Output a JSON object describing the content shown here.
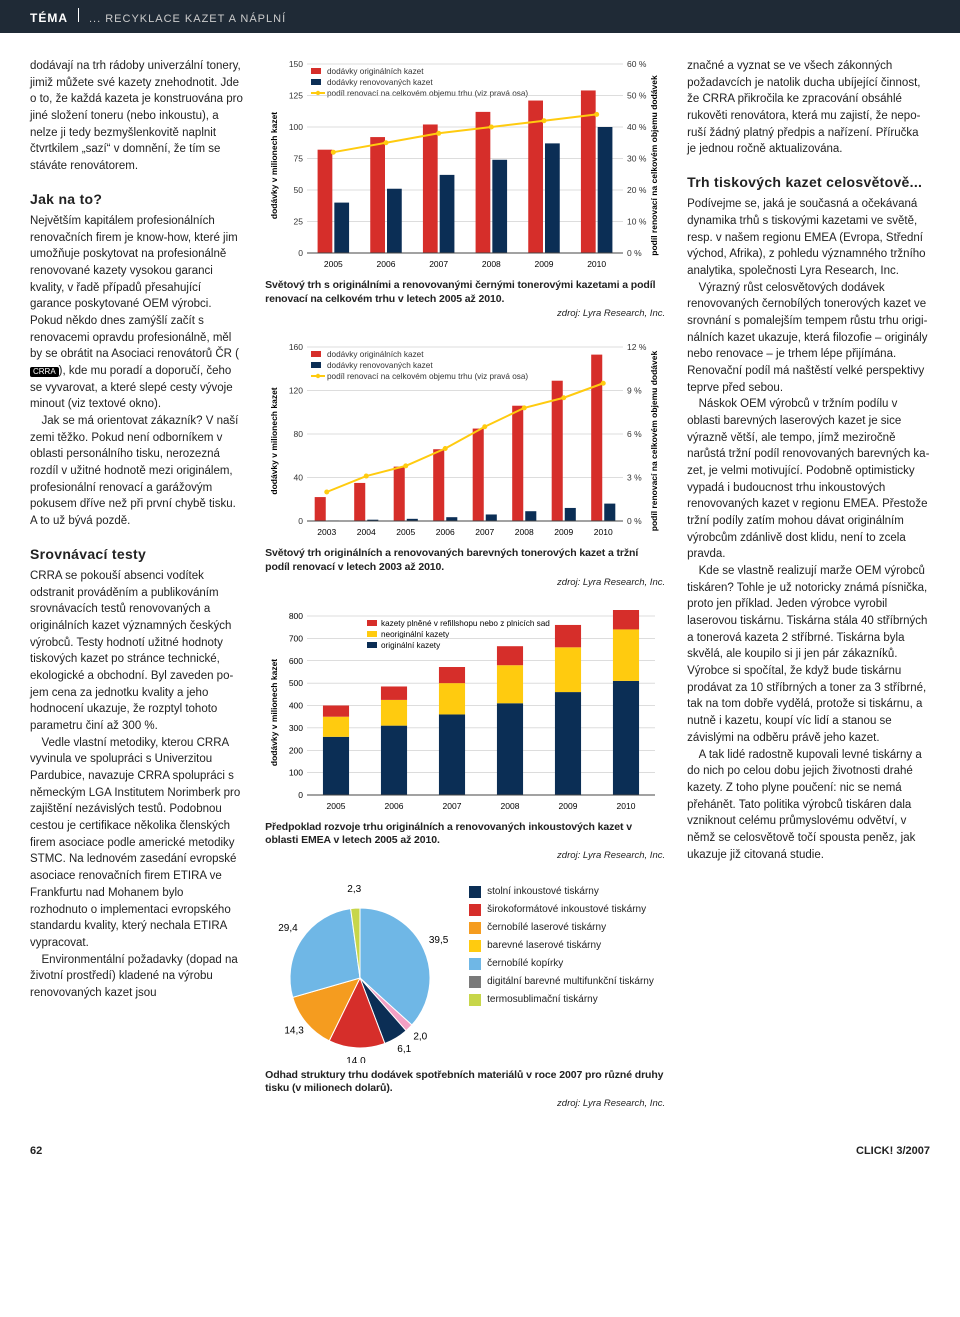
{
  "header": {
    "tema": "TÉMA",
    "subtitle": "... RECYKLACE KAZET A NÁPLNÍ"
  },
  "left": {
    "p1": "dodávají na trh rádoby univerzální tonery, jimiž můžete své kazety zne­hodnotit. Jde o to, že každá kazeta je konstruována pro jiné složení to­neru (nebo inkoustu), a nelze ji tedy bezmyšlenkovitě naplnit čtvrtkilem „sazí“ v domnění, že tím se stáváte renovátorem.",
    "h1": "Jak na to?",
    "p2": "Největším kapitálem profesionálních renovačních firem je know-how, které jim umožňuje poskytovat na profesionálně renovované kazety vysokou garanci kvality, v řadě pří­padů přesahující garance poskyto­vané OEM výrobci. Pokud někdo dnes zamýšlí začít s renovacemi opravdu profesionálně, měl by se obrátit na Asociaci renovátorů ČR (",
    "badge": "CRRA",
    "p2b": "), kde mu poradí a doporučí, čeho se vyvarovat, a které slepé cesty vývoje minout (viz textové okno).",
    "p3": "Jak se má orientovat zákazník? V naší zemi těžko. Pokud není od­borníkem v oblasti personálního tisku, nerozezná rozdíl v užitné hod­notě mezi originálem, profesionální renovací a garážovým pokusem dříve než při první chybě tisku. A to už bývá pozdě.",
    "h2": "Srovnávací testy",
    "p4": "CRRA se pokouší absenci vodítek odstranit prováděním a publiková­ním srovnávacích testů renovova­ných a originálních kazet význam­ných českých výrobců. Testy hodnotí užitné hodnoty tiskových kazet po stránce technické, ekolo­gické a obchodní. Byl zaveden po­jem cena za jednotku kvality a jeho hodnocení ukazuje, že rozptyl to­hoto parametru činí až 300 %.",
    "p5": "Vedle vlastní metodiky, kterou CRRA vyvinula ve spolupráci s Uni­verzitou Pardubice, navazuje CRRA spolupráci s německým LGA Insti­tutem Norimberk pro zajištění nezá­vislých testů. Podobnou cestou je certifikace několika členských firem asociace podle americké metodiky STMC. Na lednovém za­sedání evropské asociace renovač­ních firem ETIRA ve Frankfurtu nad Mohanem bylo rozhodnuto o imple­mentaci evropského standardu kvality, který nechala ETIRA vypra­covat.",
    "p6": "Environmentální požadavky (do­pad na životní prostředí) kladené na výrobu renovovaných kazet jsou"
  },
  "right": {
    "p1": "značné a vyznat se ve všech zákon­ných požadavcích je natolik ducha ubíjející činnost, že CRRA přikročila ke zpracování obsáhlé rukověti re­novátora, která mu zajistí, že nepo­ruší žádný platný předpis a nařízení. Příručka je jednou ročně aktualizo­vána.",
    "h1": "Trh tiskových kazet celosvětově...",
    "p2": "Podívejme se, jaká je současná a očekávaná dynamika trhů s tis­kovými kazetami ve světě, resp. v našem regionu EMEA (Evropa, Střední východ, Afrika), z pohledu významného tržního analytika, spo­lečnosti Lyra Research, Inc.",
    "p3": "Výrazný růst celosvětových dodávek renovovaných černobílých tonerových kazet ve srovnání s po­malejším tempem růstu trhu origi­nálních kazet ukazuje, která filozofie – originály nebo renovace – je trhem lépe přijímána. Renovační podíl má naštěstí velké perspek­tivy teprve před sebou.",
    "p4": "Náskok OEM výrobců v tržním podílu v oblasti barevných lasero­vých kazet je sice výrazně větší, ale tempo, jímž meziročně narůstá tržní podíl renovovaných barevných ka­zet, je velmi motivující. Podobně optimisticky vypadá i budoucnost trhu inkoustových renovovaných ka­zet v regionu EMEA. Přestože tržní podíly zatím mohou dávat originál­ním výrobcům zdánlivě dost klidu, není to zcela pravda.",
    "p5": "Kde se vlastně realizují marže OEM výrobců tiskáren? Tohle je už notoricky známá písnička, proto jen příklad. Jeden výrobce vyrobil laserovou tiskárnu. Tiskárna stála 40 stříbrných a tonerová kazeta 2 stříbrné. Tiskárna byla skvělá, ale koupilo si ji jen pár zákazníků. Výrobce si spočítal, že když bude tiskárnu prodávat za 10 stříbrných a toner za 3 stříbrné, tak na tom dobře vydělá, protože si tiskárnu, a nutně i kazetu, koupí víc lidí a stanou se závislými na odběru právě jeho kazet.",
    "p6": "A tak lidé radostně kupovali levné tiskárny a do nich po celou dobu jejich životnosti drahé kazety. Z toho plyne poučení: nic se nemá přehánět. Tato politika výrobců tis­káren dala vzniknout celému prů­myslovému odvětví, v němž se ce­losvětově točí spousta peněz, jak ukazuje již citovaná studie."
  },
  "colors": {
    "red": "#d62e2a",
    "darkblue": "#0b2e55",
    "yellow": "#ffcb0f",
    "orange": "#f59c1f",
    "cyan": "#6fb7e6",
    "grey": "#7a7a7a",
    "pink": "#f3a0c4",
    "lime": "#c7d64a",
    "axis": "#444"
  },
  "chart1": {
    "ylabel": "dodávky v milionech kazet",
    "ylabel2": "podíl renovací na celkovém objemu dodávek",
    "legend": [
      "dodávky originálních kazet",
      "dodávky renovovaných kazet",
      "podíl renovací na celkovém objemu trhu (viz pravá osa)"
    ],
    "x": [
      "2005",
      "2006",
      "2007",
      "2008",
      "2009",
      "2010"
    ],
    "yticks": [
      0,
      25,
      50,
      75,
      100,
      125,
      150
    ],
    "y2ticks": [
      "0 %",
      "10 %",
      "20 %",
      "30 %",
      "40 %",
      "50 %",
      "60 %"
    ],
    "orig": [
      82,
      92,
      102,
      112,
      121,
      129
    ],
    "renov": [
      40,
      51,
      62,
      74,
      87,
      100
    ],
    "share": [
      32,
      35,
      38,
      40,
      42,
      44
    ],
    "caption": "Světový trh s originálními a renovovanými černými tonerovými kazetami a podíl renovací na celkovém trhu v letech 2005 až 2010.",
    "src": "zdroj: Lyra Research, Inc."
  },
  "chart2": {
    "ylabel": "dodávky v milionech kazet",
    "ylabel2": "podíl renovací na celkovém objemu dodávek",
    "legend": [
      "dodávky originálních kazet",
      "dodávky renovovaných kazet",
      "podíl renovací na celkovém objemu trhu (viz pravá osa)"
    ],
    "x": [
      "2003",
      "2004",
      "2005",
      "2006",
      "2007",
      "2008",
      "2009",
      "2010"
    ],
    "yticks": [
      0,
      40,
      80,
      120,
      160
    ],
    "y2ticks": [
      "0 %",
      "3 %",
      "6 %",
      "9 %",
      "12 %"
    ],
    "orig": [
      22,
      35,
      50,
      66,
      85,
      106,
      129,
      153
    ],
    "renov": [
      0.5,
      1.2,
      2,
      3.5,
      6,
      9,
      12,
      16
    ],
    "share": [
      2.0,
      3.1,
      3.8,
      5.0,
      6.5,
      7.8,
      8.5,
      9.5
    ],
    "caption": "Světový trh originálních a renovovaných barevných tonerových kazet a tržní podíl renovací v letech 2003 až 2010.",
    "src": "zdroj: Lyra Research, Inc."
  },
  "chart3": {
    "ylabel": "dodávky v milionech kazet",
    "legend": [
      "kazety plněné v refillshopu nebo z plnicích sad",
      "neoriginální kazety",
      "originální kazety"
    ],
    "x": [
      "2005",
      "2006",
      "2007",
      "2008",
      "2009",
      "2010"
    ],
    "yticks": [
      0,
      100,
      200,
      300,
      400,
      500,
      600,
      700,
      800
    ],
    "refill": [
      50,
      60,
      72,
      85,
      100,
      115
    ],
    "neorig": [
      90,
      115,
      140,
      170,
      200,
      230
    ],
    "orig": [
      260,
      310,
      360,
      410,
      460,
      510
    ],
    "caption": "Předpoklad rozvoje trhu originálních a renovovaných inkoustových kazet v oblasti EMEA v letech 2005 až 2010.",
    "src": "zdroj: Lyra Research, Inc."
  },
  "pie": {
    "labels": [
      "stolní inkoustové tiskárny",
      "širokoformátové inkoustové tiskárny",
      "černobílé laserové tiskárny",
      "barevné laserové tiskárny",
      "černobílé kopírky",
      "digitální barevné multifunkční tiskárny",
      "termosublimační tiskárny"
    ],
    "values": [
      39.5,
      2.0,
      6.1,
      14.0,
      14.3,
      29.4,
      2.3
    ],
    "colors": [
      "#6fb7e6",
      "#f3a0c4",
      "#0b2e55",
      "#d62e2a",
      "#f59c1f",
      "#6fb7e6",
      "#c7d64a"
    ],
    "numbers": [
      "39,5",
      "2,0",
      "6,1",
      "14,0",
      "14,3",
      "29,4",
      "2,3"
    ],
    "caption": "Odhad struktury trhu dodávek spotřebních materiálů v roce 2007 pro různé druhy tisku (v milionech dolarů).",
    "src": "zdroj: Lyra Research, Inc."
  },
  "footer": {
    "pagenum": "62",
    "magazine": "CLICK! 3/2007"
  }
}
